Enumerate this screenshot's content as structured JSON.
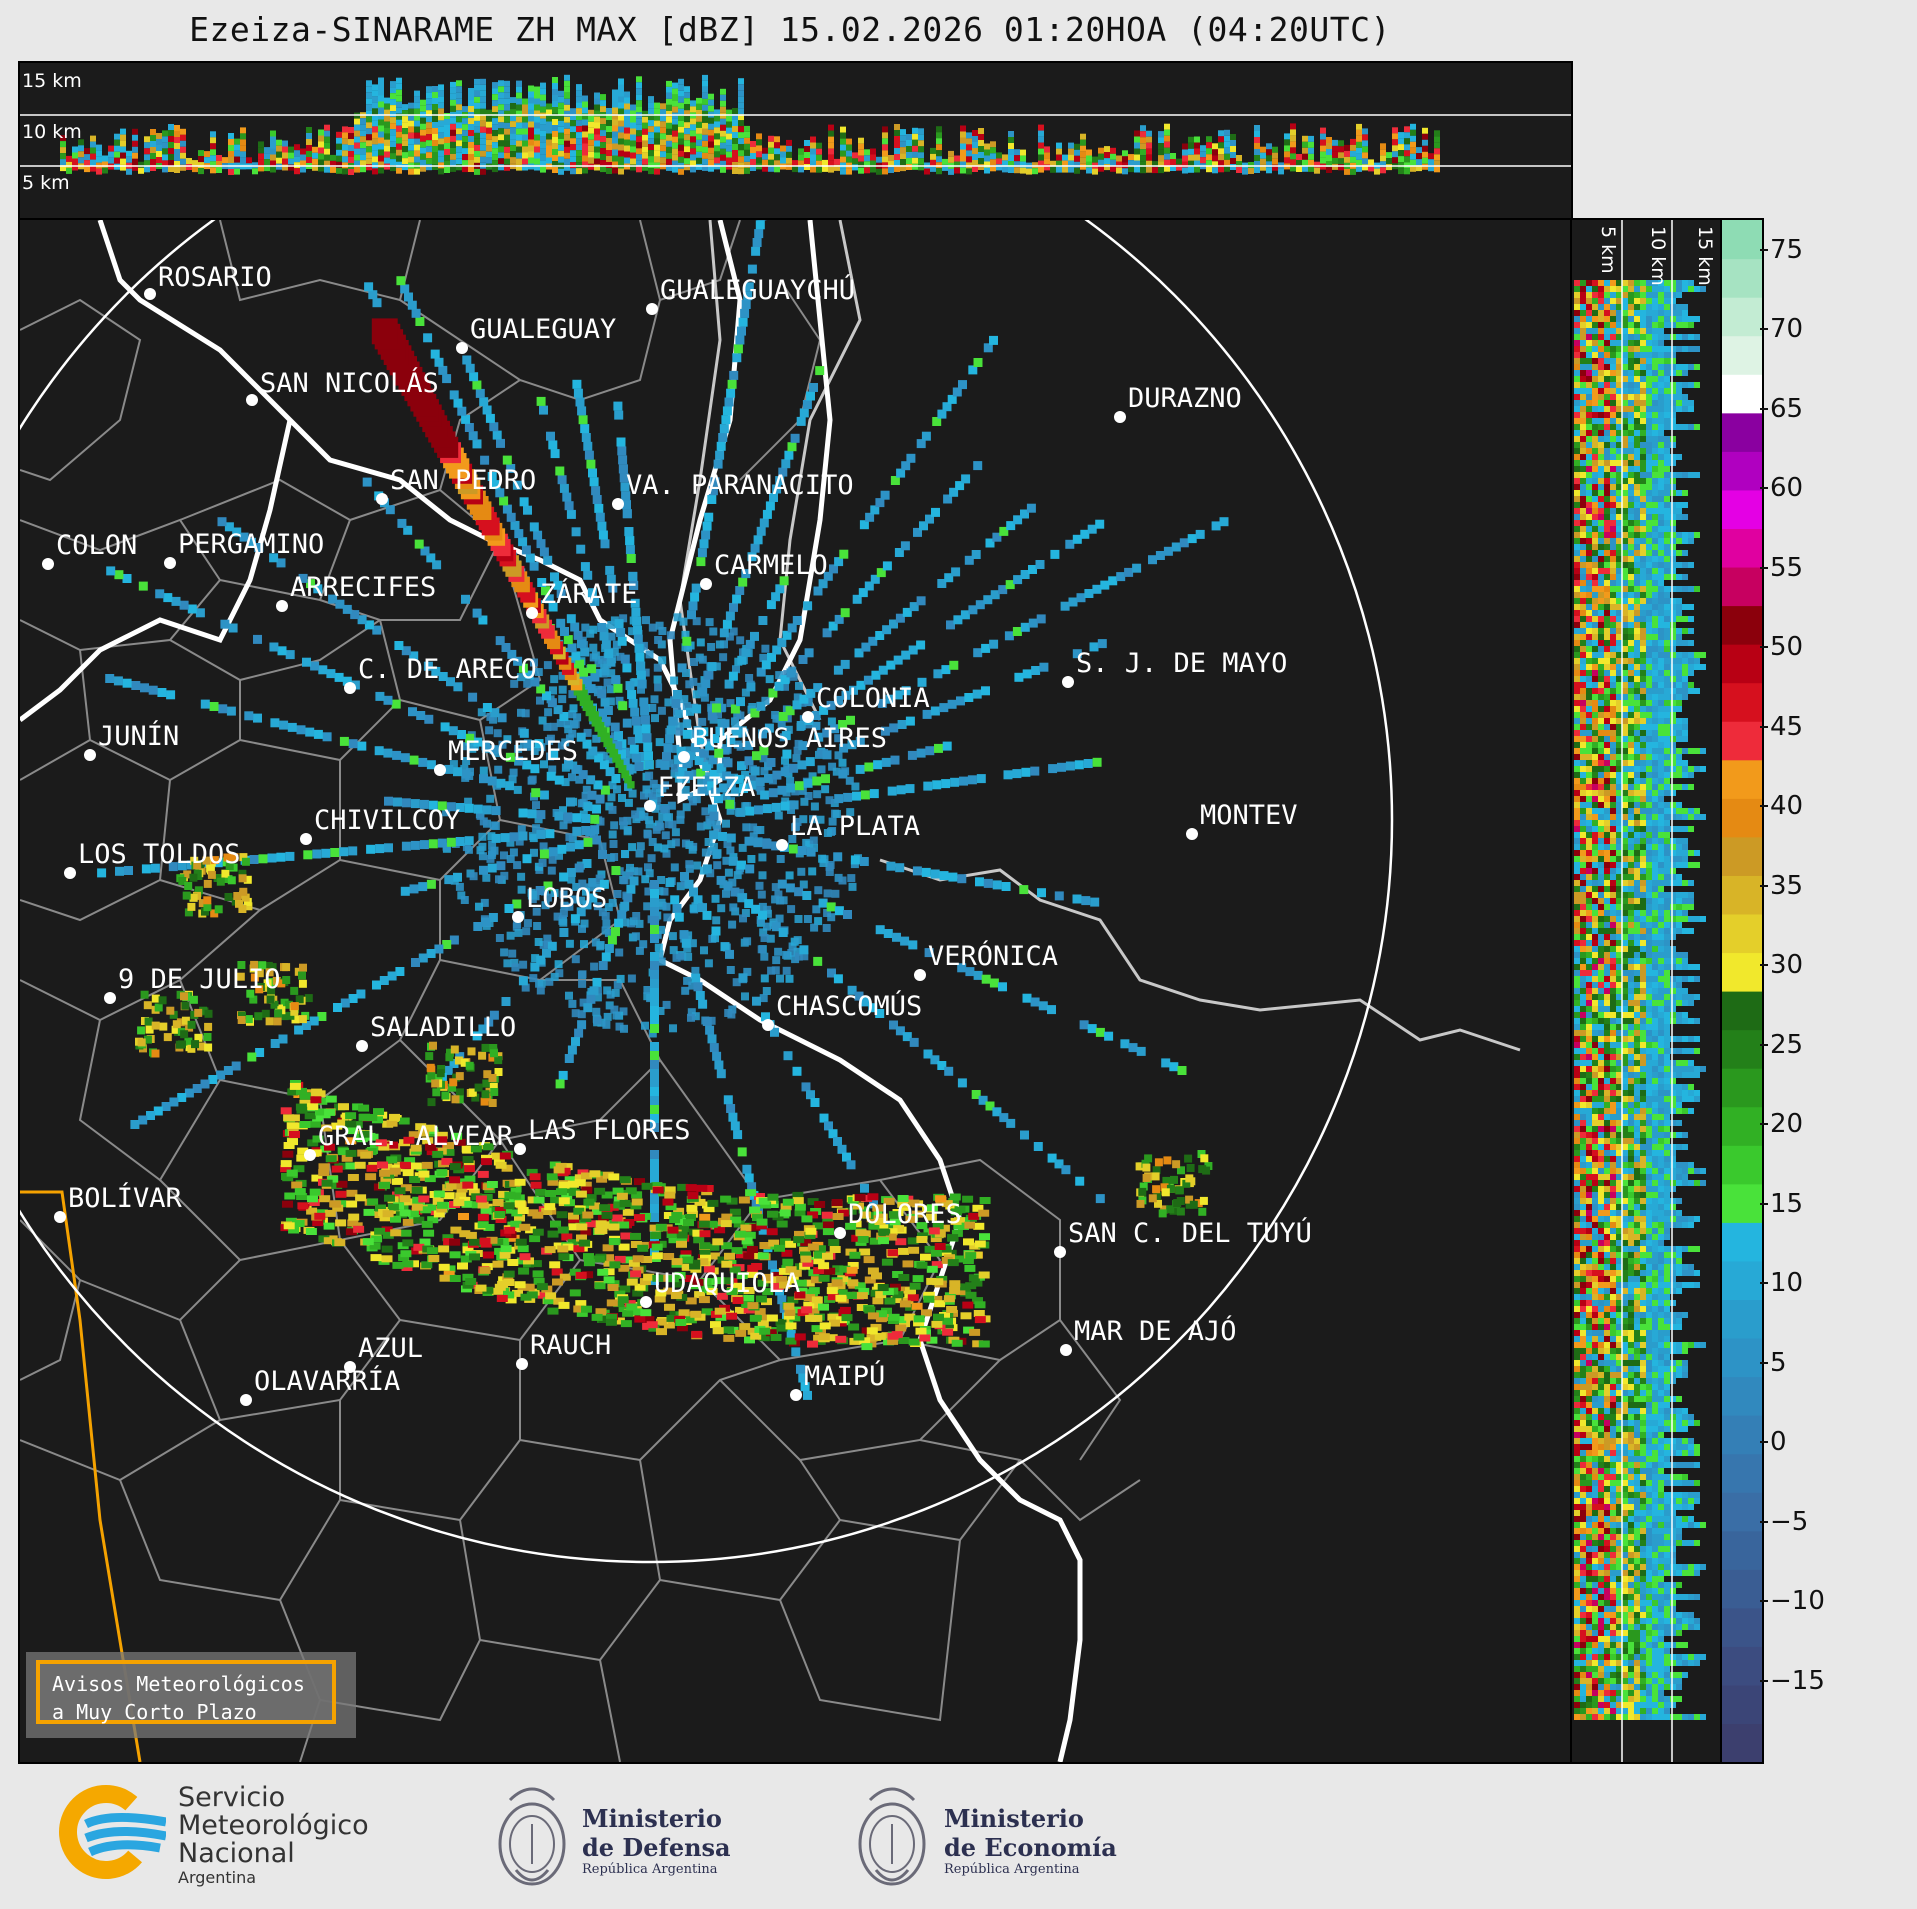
{
  "title": "Ezeiza-SINARAME ZH MAX [dBZ] 15.02.2026 01:20HOA (04:20UTC)",
  "top_panel": {
    "height_labels": [
      "15 km",
      "10 km",
      "5 km"
    ]
  },
  "side_panel": {
    "height_labels": [
      "5 km",
      "10 km",
      "15 km"
    ]
  },
  "map": {
    "cities": [
      {
        "name": "ROSARIO",
        "label": "ROSARIO"
      },
      {
        "name": "GUALEGUAYCHU",
        "label": "GUALEGUAYCHÚ"
      },
      {
        "name": "GUALEGUAY",
        "label": "GUALEGUAY"
      },
      {
        "name": "SAN NICOLAS",
        "label": "SAN NICOLÁS"
      },
      {
        "name": "DURAZNO",
        "label": "DURAZNO"
      },
      {
        "name": "SAN PEDRO",
        "label": "SAN PEDRO"
      },
      {
        "name": "VA PARANACITO",
        "label": "VA. PARANACITO"
      },
      {
        "name": "COLON",
        "label": "COLON"
      },
      {
        "name": "PERGAMINO",
        "label": "PERGAMINO"
      },
      {
        "name": "CARMELO",
        "label": "CARMELO"
      },
      {
        "name": "ARRECIFES",
        "label": "ARRECIFES"
      },
      {
        "name": "ZARATE",
        "label": "ZÁRATE"
      },
      {
        "name": "S J DE MAYO",
        "label": "S. J. DE MAYO"
      },
      {
        "name": "C DE ARECO",
        "label": "C. DE ARECO"
      },
      {
        "name": "COLONIA",
        "label": "COLONIA"
      },
      {
        "name": "JUNIN",
        "label": "JUNÍN"
      },
      {
        "name": "BUENOS AIRES",
        "label": "BUENOS AIRES"
      },
      {
        "name": "MERCEDES",
        "label": "MERCEDES"
      },
      {
        "name": "EZEIZA",
        "label": "EZEIZA"
      },
      {
        "name": "MONTEVIDEO",
        "label": "MONTEV"
      },
      {
        "name": "CHIVILCOY",
        "label": "CHIVILCOY"
      },
      {
        "name": "LA PLATA",
        "label": "LA PLATA"
      },
      {
        "name": "LOS TOLDOS",
        "label": "LOS TOLDOS"
      },
      {
        "name": "LOBOS",
        "label": "LOBOS"
      },
      {
        "name": "VERONICA",
        "label": "VERÓNICA"
      },
      {
        "name": "9 DE JULIO",
        "label": "9 DE JULIO"
      },
      {
        "name": "CHASCOMUS",
        "label": "CHASCOMÚS"
      },
      {
        "name": "SALADILLO",
        "label": "SALADILLO"
      },
      {
        "name": "GRAL ALVEAR",
        "label": "GRAL. ALVEAR"
      },
      {
        "name": "LAS FLORES",
        "label": "LAS FLORES"
      },
      {
        "name": "BOLIVAR",
        "label": "BOLÍVAR"
      },
      {
        "name": "DOLORES",
        "label": "DOLORES"
      },
      {
        "name": "SAN C DEL TUYU",
        "label": "SAN C. DEL TUYÚ"
      },
      {
        "name": "UDAQUIOLA",
        "label": "UDAQUIOLA"
      },
      {
        "name": "AZUL",
        "label": "AZUL"
      },
      {
        "name": "RAUCH",
        "label": "RAUCH"
      },
      {
        "name": "MAR DE AJO",
        "label": "MAR DE AJÓ"
      },
      {
        "name": "MAIPU",
        "label": "MAIPÚ"
      },
      {
        "name": "OLAVARRIA",
        "label": "OLAVARRÍA"
      }
    ],
    "radar_range_km": 240
  },
  "warning_button": {
    "line1": "Avisos Meteorológicos",
    "line2": "a Muy Corto Plazo"
  },
  "colorbar": {
    "unit": "dBZ",
    "min": -20,
    "max": 77,
    "ticks": [
      "75",
      "70",
      "65",
      "60",
      "55",
      "50",
      "45",
      "40",
      "35",
      "30",
      "25",
      "20",
      "15",
      "10",
      "5",
      "0",
      "−5",
      "−10",
      "−15"
    ],
    "tick_values": [
      75,
      70,
      65,
      60,
      55,
      50,
      45,
      40,
      35,
      30,
      25,
      20,
      15,
      10,
      5,
      0,
      -5,
      -10,
      -15
    ],
    "colors": [
      "#3c3f6e",
      "#3b4577",
      "#3c4c80",
      "#3b5489",
      "#3a5d93",
      "#39659c",
      "#3a6ea6",
      "#3776ae",
      "#347fb6",
      "#3189be",
      "#2d93c6",
      "#2a9dcc",
      "#27a9d6",
      "#24b5df",
      "#49e23a",
      "#3ac92d",
      "#31b024",
      "#2a981e",
      "#238019",
      "#1e6b15",
      "#f1e82c",
      "#e4cf2a",
      "#d8b427",
      "#cc9a25",
      "#e58a13",
      "#f29a1b",
      "#ee2b3a",
      "#d6101e",
      "#b80014",
      "#8b000c",
      "#c70060",
      "#e000a0",
      "#e400e4",
      "#b000c0",
      "#8a00a0",
      "#ffffff",
      "#def3e4",
      "#c3ecd3",
      "#a6e3c2",
      "#8edcb4"
    ]
  },
  "footer": {
    "smn": [
      "Servicio",
      "Meteorológico",
      "Nacional",
      "Argentina"
    ],
    "defensa": [
      "Ministerio",
      "de Defensa",
      "República Argentina"
    ],
    "economia": [
      "Ministerio",
      "de Economía",
      "República Argentina"
    ]
  }
}
